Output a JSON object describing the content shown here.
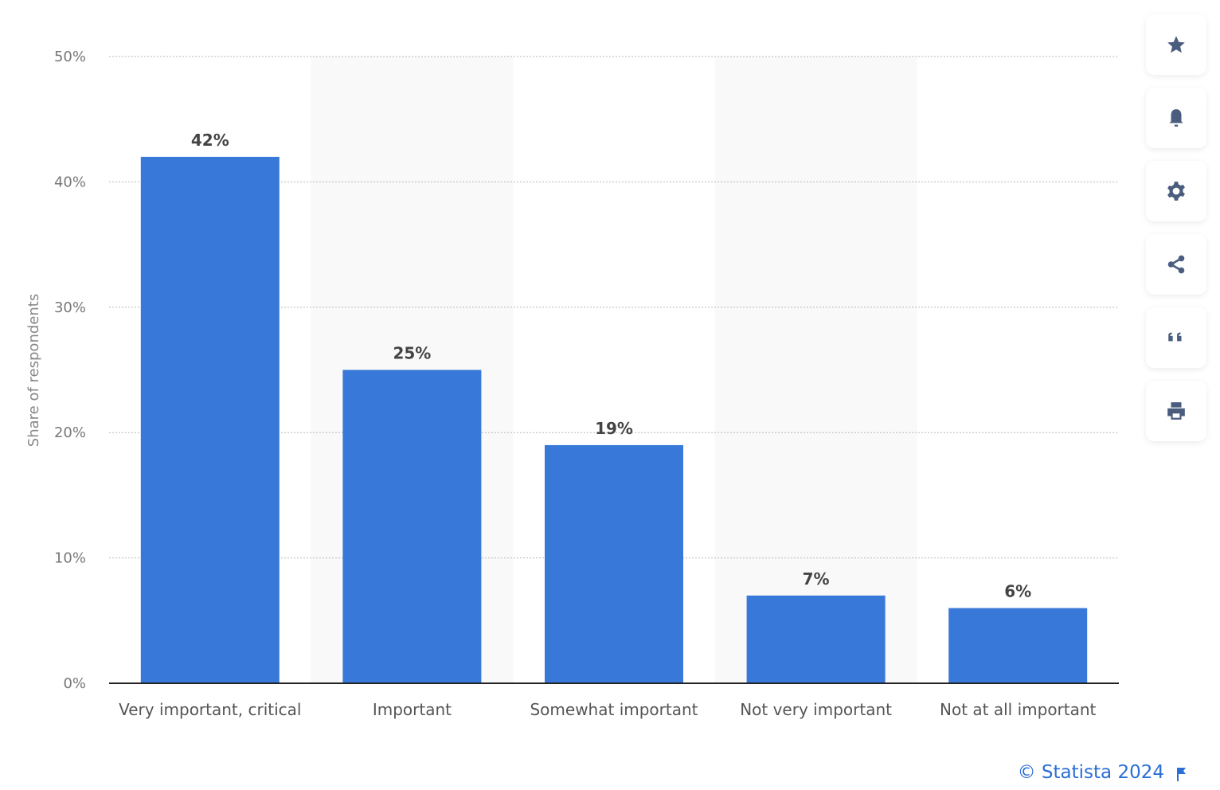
{
  "chart_data": {
    "type": "bar",
    "categories": [
      "Very important, critical",
      "Important",
      "Somewhat important",
      "Not very important",
      "Not at all important"
    ],
    "values": [
      42,
      25,
      19,
      7,
      6
    ],
    "data_labels": [
      "42%",
      "25%",
      "19%",
      "7%",
      "6%"
    ],
    "ylabel": "Share of respondents",
    "ylim": [
      0,
      50
    ],
    "yticks": [
      "0%",
      "10%",
      "20%",
      "30%",
      "40%",
      "50%"
    ],
    "grid": true,
    "bar_color": "#3878d8"
  },
  "toolbar": {
    "icons": [
      "star-icon",
      "bell-icon",
      "gear-icon",
      "share-icon",
      "quote-icon",
      "print-icon"
    ]
  },
  "credit": "© Statista 2024"
}
